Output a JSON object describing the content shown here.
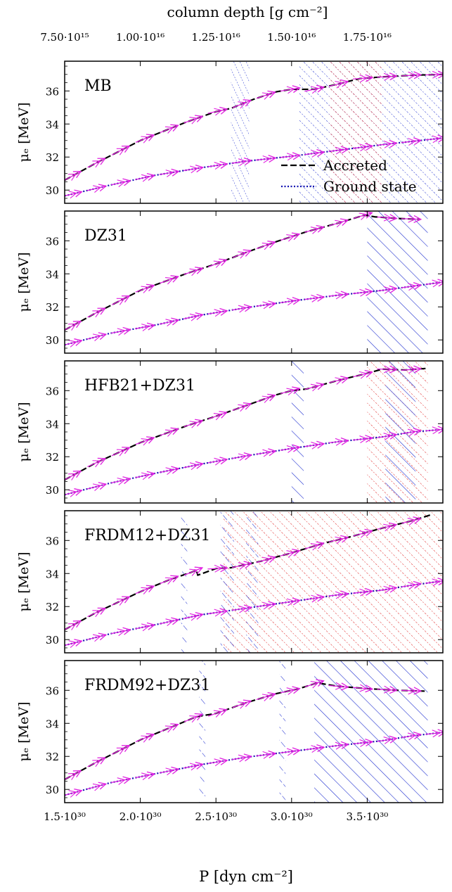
{
  "chart_data": {
    "type": "line",
    "top_axis_label": "column depth [g cm⁻²]",
    "top_ticks": [
      "7.50·10¹⁵",
      "1.00·10¹⁶",
      "1.25·10¹⁶",
      "1.50·10¹⁶",
      "1.75·10¹⁶"
    ],
    "top_tick_pressures": [
      1.5e+30,
      2e+30,
      2.5e+30,
      3e+30,
      3.5e+30
    ],
    "xlabel": "P [dyn cm⁻²]",
    "x_unit_scale": 1e+30,
    "xlim": [
      1.5,
      4.0
    ],
    "x_ticks": [
      1.5,
      2.0,
      2.5,
      3.0,
      3.5
    ],
    "x_tick_labels": [
      "1.5·10³⁰",
      "2.0·10³⁰",
      "2.5·10³⁰",
      "3.0·10³⁰",
      "3.5·10³⁰"
    ],
    "ylabel": "μₑ [MeV]",
    "ylim": [
      29.2,
      37.8
    ],
    "y_ticks": [
      30,
      32,
      34,
      36
    ],
    "legend": {
      "location": "bottom-right of first panel",
      "entries": [
        {
          "label": "Accreted",
          "style": "dashed",
          "color": "#000000"
        },
        {
          "label": "Ground state",
          "style": "dotted",
          "color": "#1010b0"
        }
      ]
    },
    "colors": {
      "accreted": "#000000",
      "ground": "#1010b0",
      "arrow": "#e020e0",
      "hatch_blue": "#2030d0",
      "hatch_red": "#e02020"
    },
    "panels": [
      {
        "name": "MB",
        "accreted": [
          [
            1.5,
            30.6
          ],
          [
            1.7,
            31.6
          ],
          [
            2.0,
            33.0
          ],
          [
            2.3,
            34.1
          ],
          [
            2.5,
            34.75
          ],
          [
            2.6,
            34.95
          ],
          [
            2.75,
            35.5
          ],
          [
            2.9,
            35.95
          ],
          [
            3.0,
            36.1
          ],
          [
            3.15,
            36.1
          ],
          [
            3.3,
            36.4
          ],
          [
            3.45,
            36.75
          ],
          [
            3.6,
            36.85
          ],
          [
            3.8,
            36.95
          ],
          [
            4.0,
            37.0
          ]
        ],
        "ground": [
          [
            1.5,
            29.65
          ],
          [
            1.8,
            30.3
          ],
          [
            2.1,
            30.9
          ],
          [
            2.4,
            31.35
          ],
          [
            2.7,
            31.75
          ],
          [
            3.0,
            32.05
          ],
          [
            3.3,
            32.4
          ],
          [
            3.6,
            32.75
          ],
          [
            3.8,
            32.95
          ],
          [
            4.0,
            33.15
          ]
        ],
        "hatch": [
          {
            "x0": 2.6,
            "x1": 2.72,
            "color": "blue",
            "pattern": "dotted-steep"
          },
          {
            "x0": 3.05,
            "x1": 4.0,
            "color": "blue",
            "pattern": "dotted-diag"
          },
          {
            "x0": 3.25,
            "x1": 3.6,
            "color": "red",
            "pattern": "dotted-diag"
          }
        ]
      },
      {
        "name": "DZ31",
        "accreted": [
          [
            1.5,
            30.6
          ],
          [
            1.7,
            31.6
          ],
          [
            2.0,
            33.0
          ],
          [
            2.3,
            34.0
          ],
          [
            2.5,
            34.6
          ],
          [
            2.7,
            35.3
          ],
          [
            2.9,
            35.95
          ],
          [
            3.1,
            36.55
          ],
          [
            3.3,
            37.05
          ],
          [
            3.48,
            37.55
          ],
          [
            3.55,
            37.45
          ],
          [
            3.7,
            37.35
          ],
          [
            3.85,
            37.3
          ]
        ],
        "ground": [
          [
            1.5,
            29.7
          ],
          [
            1.8,
            30.4
          ],
          [
            2.1,
            30.9
          ],
          [
            2.4,
            31.5
          ],
          [
            2.7,
            31.95
          ],
          [
            3.0,
            32.35
          ],
          [
            3.3,
            32.7
          ],
          [
            3.6,
            33.0
          ],
          [
            3.8,
            33.25
          ],
          [
            4.0,
            33.5
          ]
        ],
        "hatch": [
          {
            "x0": 3.5,
            "x1": 3.9,
            "color": "blue",
            "pattern": "solid-diag"
          }
        ]
      },
      {
        "name": "HFB21+DZ31",
        "accreted": [
          [
            1.5,
            30.6
          ],
          [
            1.7,
            31.6
          ],
          [
            2.0,
            32.85
          ],
          [
            2.3,
            33.85
          ],
          [
            2.5,
            34.45
          ],
          [
            2.7,
            35.1
          ],
          [
            2.9,
            35.75
          ],
          [
            3.0,
            36.0
          ],
          [
            3.1,
            36.1
          ],
          [
            3.3,
            36.6
          ],
          [
            3.48,
            37.0
          ],
          [
            3.6,
            37.3
          ],
          [
            3.75,
            37.25
          ],
          [
            3.9,
            37.35
          ]
        ],
        "ground": [
          [
            1.5,
            29.7
          ],
          [
            1.8,
            30.4
          ],
          [
            2.1,
            31.0
          ],
          [
            2.4,
            31.55
          ],
          [
            2.7,
            32.05
          ],
          [
            3.0,
            32.5
          ],
          [
            3.3,
            32.9
          ],
          [
            3.6,
            33.2
          ],
          [
            3.8,
            33.5
          ],
          [
            4.0,
            33.65
          ]
        ],
        "hatch": [
          {
            "x0": 3.0,
            "x1": 3.08,
            "color": "blue",
            "pattern": "solid-diag"
          },
          {
            "x0": 3.5,
            "x1": 3.9,
            "color": "red",
            "pattern": "dotted-diag"
          },
          {
            "x0": 3.62,
            "x1": 3.82,
            "color": "blue",
            "pattern": "solid-diag"
          }
        ]
      },
      {
        "name": "FRDM12+DZ31",
        "accreted": [
          [
            1.5,
            30.6
          ],
          [
            1.7,
            31.6
          ],
          [
            2.0,
            32.9
          ],
          [
            2.2,
            33.65
          ],
          [
            2.33,
            34.05
          ],
          [
            2.37,
            34.2
          ],
          [
            2.38,
            33.9
          ],
          [
            2.5,
            34.3
          ],
          [
            2.6,
            34.35
          ],
          [
            2.7,
            34.55
          ],
          [
            2.8,
            34.75
          ],
          [
            3.0,
            35.25
          ],
          [
            3.2,
            35.8
          ],
          [
            3.4,
            36.25
          ],
          [
            3.6,
            36.75
          ],
          [
            3.8,
            37.2
          ],
          [
            3.92,
            37.55
          ]
        ],
        "ground": [
          [
            1.5,
            29.65
          ],
          [
            1.8,
            30.35
          ],
          [
            2.1,
            30.9
          ],
          [
            2.4,
            31.5
          ],
          [
            2.7,
            31.9
          ],
          [
            3.0,
            32.3
          ],
          [
            3.3,
            32.7
          ],
          [
            3.6,
            33.0
          ],
          [
            3.8,
            33.3
          ],
          [
            4.0,
            33.55
          ]
        ],
        "hatch": [
          {
            "x0": 2.27,
            "x1": 2.31,
            "color": "blue",
            "pattern": "dashed-diag"
          },
          {
            "x0": 2.55,
            "x1": 4.0,
            "color": "red",
            "pattern": "dotted-diag"
          },
          {
            "x0": 2.53,
            "x1": 2.62,
            "color": "blue",
            "pattern": "dashed-diag"
          },
          {
            "x0": 2.7,
            "x1": 2.78,
            "color": "blue",
            "pattern": "dashed-diag"
          }
        ]
      },
      {
        "name": "FRDM92+DZ31",
        "accreted": [
          [
            1.5,
            30.6
          ],
          [
            1.7,
            31.6
          ],
          [
            2.0,
            33.0
          ],
          [
            2.2,
            33.75
          ],
          [
            2.37,
            34.4
          ],
          [
            2.5,
            34.6
          ],
          [
            2.7,
            35.25
          ],
          [
            2.9,
            35.8
          ],
          [
            3.05,
            36.1
          ],
          [
            3.17,
            36.45
          ],
          [
            3.3,
            36.25
          ],
          [
            3.5,
            36.1
          ],
          [
            3.7,
            36.0
          ],
          [
            3.88,
            35.95
          ]
        ],
        "ground": [
          [
            1.5,
            29.65
          ],
          [
            1.8,
            30.4
          ],
          [
            2.1,
            30.95
          ],
          [
            2.4,
            31.5
          ],
          [
            2.7,
            31.95
          ],
          [
            3.0,
            32.3
          ],
          [
            3.3,
            32.65
          ],
          [
            3.6,
            32.95
          ],
          [
            3.8,
            33.25
          ],
          [
            4.0,
            33.45
          ]
        ],
        "hatch": [
          {
            "x0": 2.39,
            "x1": 2.43,
            "color": "blue",
            "pattern": "dashed-diag"
          },
          {
            "x0": 2.92,
            "x1": 2.96,
            "color": "blue",
            "pattern": "dashed-diag"
          },
          {
            "x0": 3.15,
            "x1": 3.9,
            "color": "blue",
            "pattern": "solid-diag"
          }
        ]
      }
    ]
  }
}
